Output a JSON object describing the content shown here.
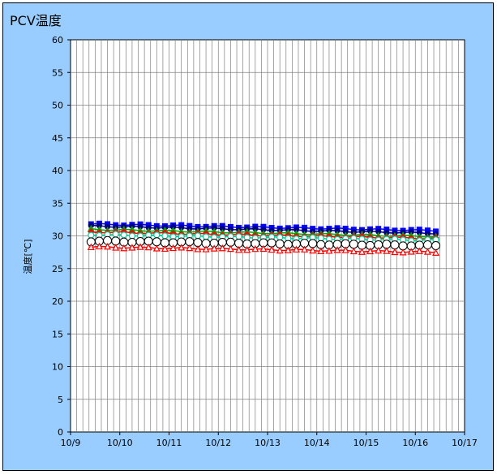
{
  "chart_data": {
    "type": "line",
    "title": "PCV温度",
    "ylabel": "温度[℃]",
    "xlabel": "",
    "ylim": [
      0,
      60
    ],
    "yticks": [
      0,
      5,
      10,
      15,
      20,
      25,
      30,
      35,
      40,
      45,
      50,
      55,
      60
    ],
    "xticks": [
      "10/9",
      "10/10",
      "10/11",
      "10/12",
      "10/13",
      "10/14",
      "10/15",
      "10/16",
      "10/17"
    ],
    "x_range": [
      "10/9",
      "10/17"
    ],
    "grid": true,
    "x_minor_gridlines_per_day": 8,
    "x": [
      "10/9 10:00",
      "10/9 14:00",
      "10/9 18:00",
      "10/9 22:00",
      "10/10 02:00",
      "10/10 06:00",
      "10/10 10:00",
      "10/10 14:00",
      "10/10 18:00",
      "10/10 22:00",
      "10/11 02:00",
      "10/11 06:00",
      "10/11 10:00",
      "10/11 14:00",
      "10/11 18:00",
      "10/11 22:00",
      "10/12 02:00",
      "10/12 06:00",
      "10/12 10:00",
      "10/12 14:00",
      "10/12 18:00",
      "10/12 22:00",
      "10/13 02:00",
      "10/13 06:00",
      "10/13 10:00",
      "10/13 14:00",
      "10/13 18:00",
      "10/13 22:00",
      "10/14 02:00",
      "10/14 06:00",
      "10/14 10:00",
      "10/14 14:00",
      "10/14 18:00",
      "10/14 22:00",
      "10/15 02:00",
      "10/15 06:00",
      "10/15 10:00",
      "10/15 14:00",
      "10/15 18:00",
      "10/15 22:00",
      "10/16 02:00",
      "10/16 06:00",
      "10/16 10:00"
    ],
    "series": [
      {
        "color": "#0000ff",
        "marker": "square-filled",
        "start": 31.8,
        "end": 30.8
      },
      {
        "color": "#000080",
        "marker": "circle-filled",
        "start": 31.5,
        "end": 30.4
      },
      {
        "color": "#00aa00",
        "marker": "triangle-filled",
        "start": 31.0,
        "end": 29.9
      },
      {
        "color": "#ff0000",
        "marker": "diamond-filled",
        "start": 30.6,
        "end": 29.6
      },
      {
        "color": "#00cc99",
        "marker": "circle-open",
        "start": 30.2,
        "end": 29.3
      },
      {
        "color": "#000000",
        "marker": "circle-open-large",
        "start": 29.2,
        "end": 28.5
      },
      {
        "color": "#ff0000",
        "marker": "triangle-open",
        "start": 28.3,
        "end": 27.5
      }
    ]
  }
}
